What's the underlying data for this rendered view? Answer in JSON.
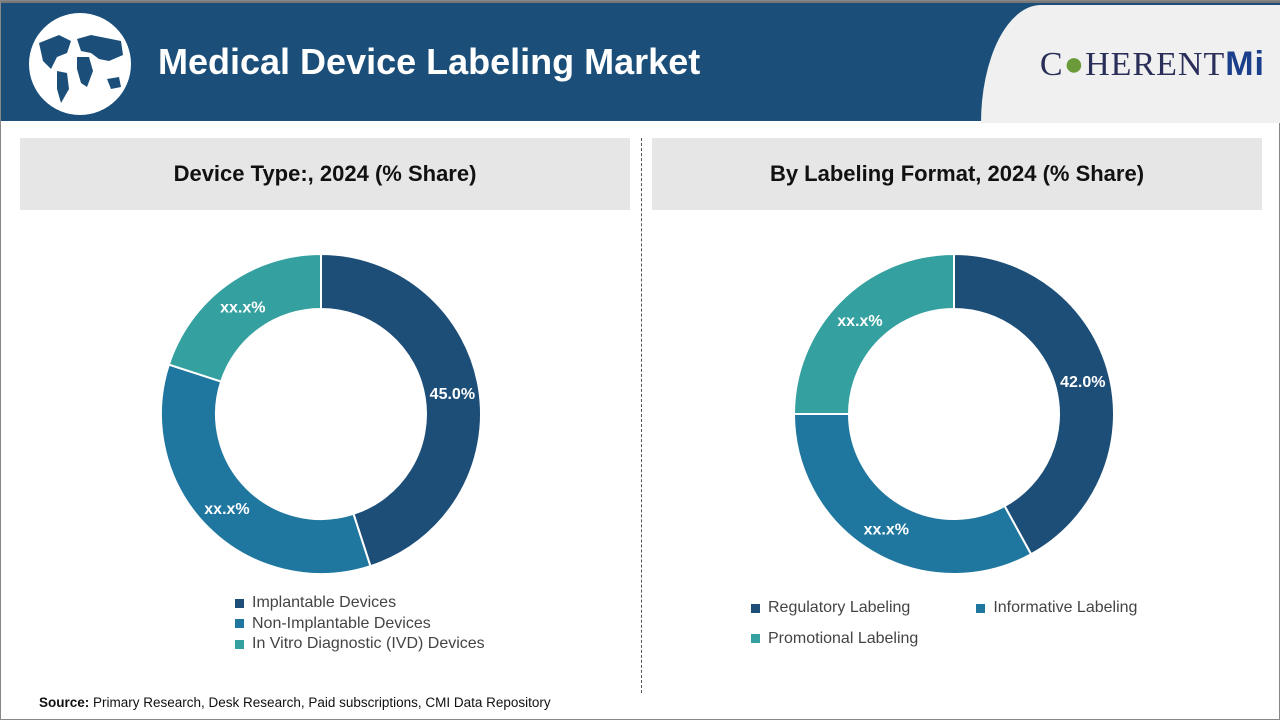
{
  "header": {
    "title": "Medical Device Labeling Market",
    "brand_prefix": "C",
    "brand_mid": "HERENT",
    "brand_suffix": "Mi",
    "globe_icon": "world-map-icon"
  },
  "colors": {
    "header": "#1b4f79",
    "navy": "#1d4e78",
    "blue": "#1f77a0",
    "teal": "#35a0a0"
  },
  "chart_data": [
    {
      "type": "pie",
      "title": "Device Type:, 2024 (% Share)",
      "categories": [
        "Implantable Devices",
        "Non-Implantable Devices",
        "In Vitro Diagnostic (IVD) Devices"
      ],
      "values": [
        45.0,
        35,
        20
      ],
      "labels": [
        "45.0%",
        "xx.x%",
        "xx.x%"
      ],
      "colors": [
        "#1d4e78",
        "#1f77a0",
        "#35a0a0"
      ],
      "donut": true,
      "legend": "bottom"
    },
    {
      "type": "pie",
      "title": "By Labeling Format, 2024 (% Share)",
      "categories": [
        "Regulatory Labeling",
        "Informative Labeling",
        "Promotional Labeling"
      ],
      "values": [
        42.0,
        33,
        25
      ],
      "labels": [
        "42.0%",
        "xx.x%",
        "xx.x%"
      ],
      "colors": [
        "#1d4e78",
        "#1f77a0",
        "#35a0a0"
      ],
      "donut": true,
      "legend": "bottom"
    }
  ],
  "source": {
    "label": "Source:",
    "text": " Primary Research, Desk Research, Paid subscriptions, CMI Data Repository"
  }
}
